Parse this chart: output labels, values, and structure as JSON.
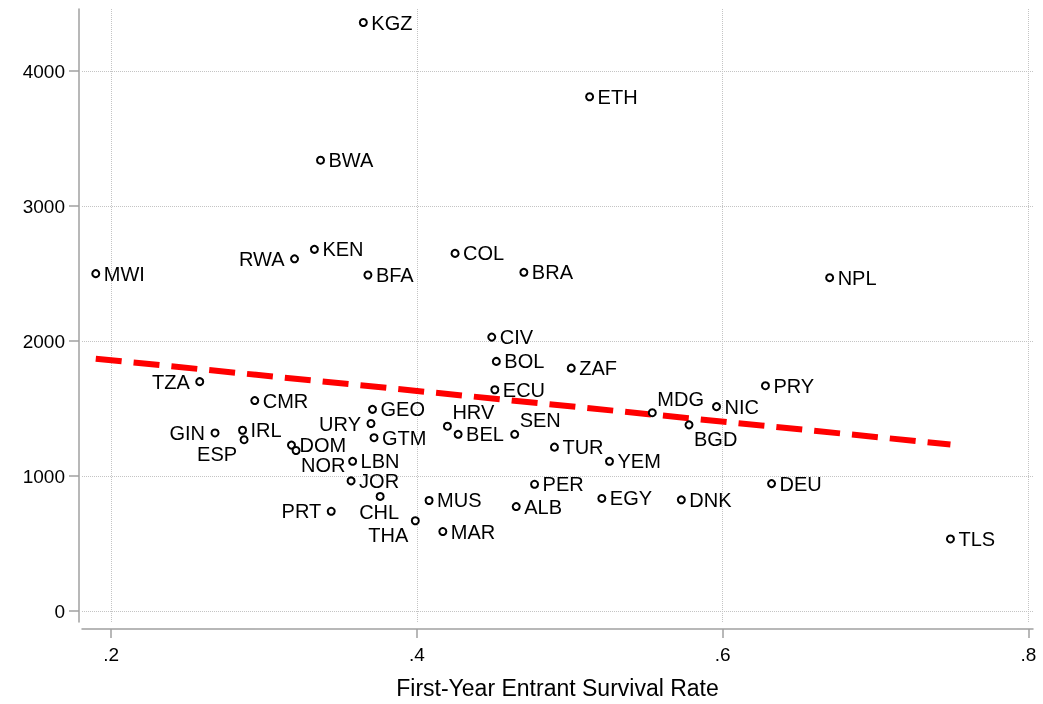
{
  "chart_data": {
    "type": "scatter",
    "xlabel": "First-Year Entrant Survival Rate",
    "xlim": [
      0.181,
      0.803
    ],
    "xticks": [
      {
        "value": 0.2,
        "label": ".2"
      },
      {
        "value": 0.4,
        "label": ".4"
      },
      {
        "value": 0.6,
        "label": ".6"
      },
      {
        "value": 0.8,
        "label": ".8"
      }
    ],
    "ylim": [
      -80,
      4460
    ],
    "yticks": [
      0,
      1000,
      2000,
      3000,
      4000
    ],
    "grid": true,
    "series": [
      {
        "color": "#000000",
        "marker": "circle",
        "x": [
          0.365,
          0.513,
          0.337,
          0.333,
          0.425,
          0.32,
          0.47,
          0.19,
          0.368,
          0.67,
          0.449,
          0.452,
          0.501,
          0.258,
          0.628,
          0.451,
          0.294,
          0.596,
          0.371,
          0.554,
          0.37,
          0.578,
          0.42,
          0.286,
          0.268,
          0.427,
          0.464,
          0.372,
          0.287,
          0.318,
          0.49,
          0.321,
          0.358,
          0.526,
          0.357,
          0.632,
          0.477,
          0.376,
          0.521,
          0.573,
          0.408,
          0.465,
          0.344,
          0.399,
          0.417,
          0.749
        ],
        "values": [
          4360,
          3810,
          3340,
          2680,
          2650,
          2610,
          2510,
          2500,
          2490,
          2470,
          2030,
          1850,
          1800,
          1700,
          1670,
          1640,
          1560,
          1515,
          1495,
          1470,
          1390,
          1380,
          1370,
          1340,
          1320,
          1310,
          1310,
          1285,
          1270,
          1230,
          1215,
          1190,
          1110,
          1110,
          965,
          945,
          940,
          850,
          835,
          825,
          820,
          775,
          740,
          670,
          590,
          535
        ],
        "value_labels": [
          "KGZ",
          "ETH",
          "BWA",
          "KEN",
          "COL",
          "RWA",
          "BRA",
          "MWI",
          "BFA",
          "NPL",
          "CIV",
          "BOL",
          "ZAF",
          "TZA",
          "PRY",
          "ECU",
          "CMR",
          "NIC",
          "GEO",
          "MDG",
          "URY",
          "BGD",
          "HRV",
          "IRL",
          "GIN",
          "BEL",
          "SEN",
          "GTM",
          "ESP",
          "DOM",
          "TUR",
          "NOR",
          "LBN",
          "YEM",
          "JOR",
          "DEU",
          "PER",
          "CHL",
          "EGY",
          "DNK",
          "MUS",
          "ALB",
          "PRT",
          "THA",
          "MAR",
          "TLS"
        ]
      },
      {
        "type": "line",
        "color": "#ff0000",
        "line_style": "dashed",
        "marker": "none",
        "x": [
          0.19,
          0.749
        ],
        "values": [
          1870,
          1235
        ]
      }
    ]
  }
}
